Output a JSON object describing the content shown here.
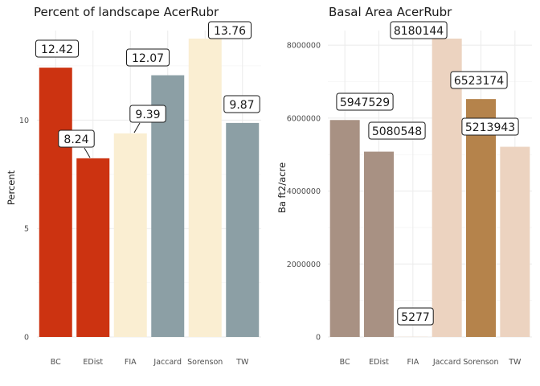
{
  "chart_data": [
    {
      "type": "bar",
      "title": "Percent of landscape  AcerRubr",
      "xlabel": "",
      "ylabel": "Percent",
      "ylim": [
        0,
        13.76
      ],
      "yticks": [
        0,
        5,
        10
      ],
      "grid": true,
      "categories": [
        "BC",
        "EDist",
        "FIA",
        "Jaccard",
        "Sorenson",
        "TW"
      ],
      "values": [
        12.42,
        8.24,
        9.39,
        12.07,
        13.76,
        9.87
      ],
      "data_labels": [
        "12.42",
        "8.24",
        "9.39",
        "12.07",
        "13.76",
        "9.87"
      ],
      "colors": [
        "#cc3311",
        "#cc3311",
        "#faeed2",
        "#8c9fa5",
        "#faeed2",
        "#8c9fa5"
      ]
    },
    {
      "type": "bar",
      "title": "Basal Area  AcerRubr",
      "xlabel": "",
      "ylabel": "Ba ft2/acre",
      "ylim": [
        0,
        8180144
      ],
      "yticks": [
        0,
        2000000,
        4000000,
        6000000,
        8000000
      ],
      "ytick_labels": [
        "0",
        "2000000",
        "4000000",
        "6000000",
        "8000000"
      ],
      "grid": true,
      "categories": [
        "BC",
        "EDist",
        "FIA",
        "Jaccard",
        "Sorenson",
        "TW"
      ],
      "values": [
        5947529,
        5080548,
        5277,
        8180144,
        6523174,
        5213943
      ],
      "data_labels": [
        "5947529",
        "5080548",
        "5277",
        "8180144",
        "6523174",
        "5213943"
      ],
      "colors": [
        "#a89183",
        "#a89183",
        "#ecd3c0",
        "#ecd3c0",
        "#b5834b",
        "#ecd3c0"
      ]
    }
  ]
}
